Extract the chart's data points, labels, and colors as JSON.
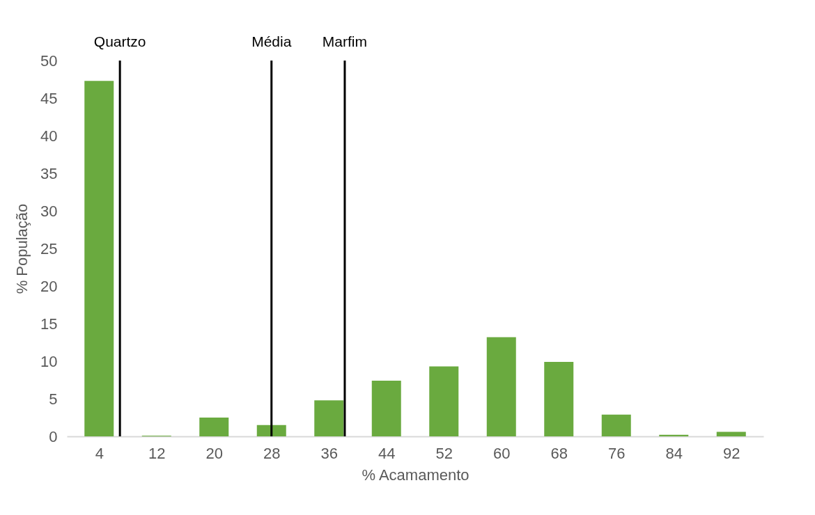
{
  "chart_data": {
    "type": "bar",
    "xlabel": "% Acamamento",
    "ylabel": "% População",
    "x": [
      4,
      12,
      20,
      28,
      36,
      44,
      52,
      60,
      68,
      76,
      84,
      92
    ],
    "values": [
      47.3,
      0.1,
      2.5,
      1.5,
      4.8,
      7.4,
      9.3,
      13.2,
      9.9,
      2.9,
      0.2,
      0.6
    ],
    "color": "#6aaa3f",
    "xlim": [
      0,
      96
    ],
    "xticks": [
      4,
      12,
      20,
      28,
      36,
      44,
      52,
      60,
      68,
      76,
      84,
      92
    ],
    "ylim": [
      0,
      50
    ],
    "yticks": [
      0,
      5,
      10,
      15,
      20,
      25,
      30,
      35,
      40,
      45,
      50
    ],
    "grid": false,
    "ref_lines": [
      {
        "axis": "x",
        "value": 6.9,
        "label": "Quartzo",
        "color": "#000000"
      },
      {
        "axis": "x",
        "value": 28,
        "label": "Média",
        "color": "#000000"
      },
      {
        "axis": "x",
        "value": 38.2,
        "label": "Marfim",
        "color": "#000000"
      }
    ]
  }
}
